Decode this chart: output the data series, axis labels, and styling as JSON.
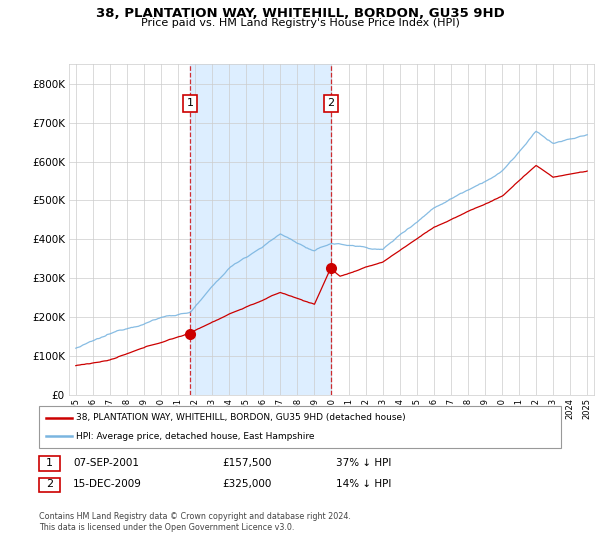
{
  "title_line1": "38, PLANTATION WAY, WHITEHILL, BORDON, GU35 9HD",
  "title_line2": "Price paid vs. HM Land Registry's House Price Index (HPI)",
  "ylim": [
    0,
    850000
  ],
  "yticks": [
    0,
    100000,
    200000,
    300000,
    400000,
    500000,
    600000,
    700000,
    800000
  ],
  "ytick_labels": [
    "£0",
    "£100K",
    "£200K",
    "£300K",
    "£400K",
    "£500K",
    "£600K",
    "£700K",
    "£800K"
  ],
  "sale1_date_num": 2001.7,
  "sale1_price": 157500,
  "sale1_label": "1",
  "sale2_date_num": 2009.95,
  "sale2_price": 325000,
  "sale2_label": "2",
  "legend_line1": "38, PLANTATION WAY, WHITEHILL, BORDON, GU35 9HD (detached house)",
  "legend_line2": "HPI: Average price, detached house, East Hampshire",
  "ann1_box": "1",
  "ann1_date": "07-SEP-2001",
  "ann1_price": "£157,500",
  "ann1_hpi": "37% ↓ HPI",
  "ann2_box": "2",
  "ann2_date": "15-DEC-2009",
  "ann2_price": "£325,000",
  "ann2_hpi": "14% ↓ HPI",
  "footer": "Contains HM Land Registry data © Crown copyright and database right 2024.\nThis data is licensed under the Open Government Licence v3.0.",
  "hpi_color": "#7ab5e0",
  "sale_color": "#cc0000",
  "vline_color": "#cc0000",
  "grid_color": "#cccccc",
  "shade_color": "#ddeeff",
  "bg_color": "#ffffff"
}
